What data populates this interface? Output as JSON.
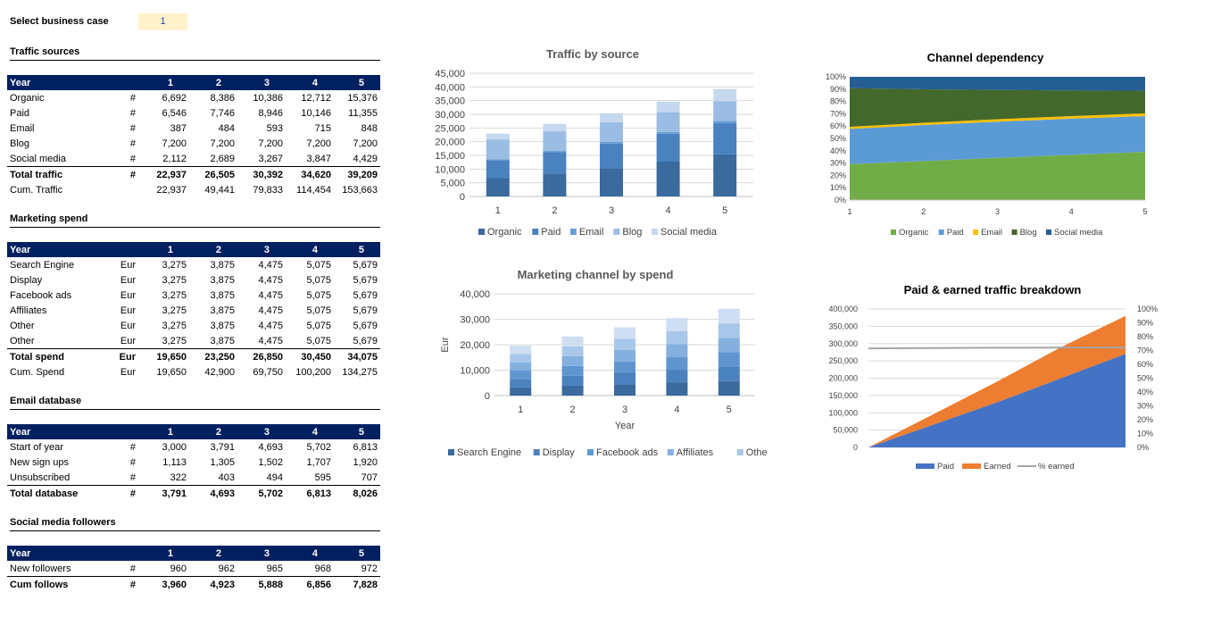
{
  "business_case": {
    "label": "Select business case",
    "value": "1"
  },
  "tables": [
    {
      "title": "Traffic sources",
      "header": [
        "Year",
        "",
        "1",
        "2",
        "3",
        "4",
        "5"
      ],
      "rows": [
        {
          "label": "Organic",
          "unit": "#",
          "values": [
            "6,692",
            "8,386",
            "10,386",
            "12,712",
            "15,376"
          ]
        },
        {
          "label": "Paid",
          "unit": "#",
          "values": [
            "6,546",
            "7,746",
            "8,946",
            "10,146",
            "11,355"
          ]
        },
        {
          "label": "Email",
          "unit": "#",
          "values": [
            "387",
            "484",
            "593",
            "715",
            "848"
          ]
        },
        {
          "label": "Blog",
          "unit": "#",
          "values": [
            "7,200",
            "7,200",
            "7,200",
            "7,200",
            "7,200"
          ]
        },
        {
          "label": "Social media",
          "unit": "#",
          "values": [
            "2,112",
            "2,689",
            "3,267",
            "3,847",
            "4,429"
          ]
        },
        {
          "label": "Total traffic",
          "unit": "#",
          "values": [
            "22,937",
            "26,505",
            "30,392",
            "34,620",
            "39,209"
          ],
          "total": true
        },
        {
          "label": "Cum. Traffic",
          "unit": "",
          "values": [
            "22,937",
            "49,441",
            "79,833",
            "114,454",
            "153,663"
          ]
        }
      ]
    },
    {
      "title": "Marketing spend",
      "header": [
        "Year",
        "",
        "1",
        "2",
        "3",
        "4",
        "5"
      ],
      "rows": [
        {
          "label": "Search Engine",
          "unit": "Eur",
          "values": [
            "3,275",
            "3,875",
            "4,475",
            "5,075",
            "5,679"
          ]
        },
        {
          "label": "Display",
          "unit": "Eur",
          "values": [
            "3,275",
            "3,875",
            "4,475",
            "5,075",
            "5,679"
          ]
        },
        {
          "label": "Facebook ads",
          "unit": "Eur",
          "values": [
            "3,275",
            "3,875",
            "4,475",
            "5,075",
            "5,679"
          ]
        },
        {
          "label": "Affiliates",
          "unit": "Eur",
          "values": [
            "3,275",
            "3,875",
            "4,475",
            "5,075",
            "5,679"
          ]
        },
        {
          "label": "Other",
          "unit": "Eur",
          "values": [
            "3,275",
            "3,875",
            "4,475",
            "5,075",
            "5,679"
          ]
        },
        {
          "label": "Other",
          "unit": "Eur",
          "values": [
            "3,275",
            "3,875",
            "4,475",
            "5,075",
            "5,679"
          ]
        },
        {
          "label": "Total spend",
          "unit": "Eur",
          "values": [
            "19,650",
            "23,250",
            "26,850",
            "30,450",
            "34,075"
          ],
          "total": true
        },
        {
          "label": "Cum. Spend",
          "unit": "Eur",
          "values": [
            "19,650",
            "42,900",
            "69,750",
            "100,200",
            "134,275"
          ]
        }
      ]
    },
    {
      "title": "Email database",
      "header": [
        "Year",
        "",
        "1",
        "2",
        "3",
        "4",
        "5"
      ],
      "rows": [
        {
          "label": "Start of year",
          "unit": "#",
          "values": [
            "3,000",
            "3,791",
            "4,693",
            "5,702",
            "6,813"
          ]
        },
        {
          "label": "New sign ups",
          "unit": "#",
          "values": [
            "1,113",
            "1,305",
            "1,502",
            "1,707",
            "1,920"
          ]
        },
        {
          "label": "Unsubscribed",
          "unit": "#",
          "values": [
            "322",
            "403",
            "494",
            "595",
            "707"
          ]
        },
        {
          "label": "Total database",
          "unit": "#",
          "values": [
            "3,791",
            "4,693",
            "5,702",
            "6,813",
            "8,026"
          ],
          "total": true,
          "bold_only": true
        }
      ]
    },
    {
      "title": "Social media followers",
      "header": [
        "Year",
        "",
        "1",
        "2",
        "3",
        "4",
        "5"
      ],
      "rows": [
        {
          "label": "New followers",
          "unit": "#",
          "values": [
            "960",
            "962",
            "965",
            "968",
            "972"
          ]
        },
        {
          "label": "Cum follows",
          "unit": "#",
          "values": [
            "3,960",
            "4,923",
            "5,888",
            "6,856",
            "7,828"
          ],
          "total": true
        }
      ]
    }
  ],
  "chart_data": [
    {
      "type": "bar",
      "stacked": true,
      "title": "Traffic by source",
      "categories": [
        "1",
        "2",
        "3",
        "4",
        "5"
      ],
      "ylim": [
        0,
        45000
      ],
      "yticks": [
        "0",
        "5,000",
        "10,000",
        "15,000",
        "20,000",
        "25,000",
        "30,000",
        "35,000",
        "40,000",
        "45,000"
      ],
      "series": [
        {
          "name": "Organic",
          "color": "#3a6a9e",
          "values": [
            6692,
            8386,
            10386,
            12712,
            15376
          ]
        },
        {
          "name": "Paid",
          "color": "#4a82bf",
          "values": [
            6546,
            7746,
            8946,
            10146,
            11355
          ]
        },
        {
          "name": "Email",
          "color": "#6b9fd6",
          "values": [
            387,
            484,
            593,
            715,
            848
          ]
        },
        {
          "name": "Blog",
          "color": "#9bbde4",
          "values": [
            7200,
            7200,
            7200,
            7200,
            7200
          ]
        },
        {
          "name": "Social media",
          "color": "#c5d8ef",
          "values": [
            2112,
            2689,
            3267,
            3847,
            4429
          ]
        }
      ],
      "grid": true,
      "legend": "bottom"
    },
    {
      "type": "area",
      "stacked_percent": true,
      "title": "Channel dependency",
      "categories": [
        "1",
        "2",
        "3",
        "4",
        "5"
      ],
      "ylim": [
        0,
        100
      ],
      "yticks": [
        "0%",
        "10%",
        "20%",
        "30%",
        "40%",
        "50%",
        "60%",
        "70%",
        "80%",
        "90%",
        "100%"
      ],
      "series": [
        {
          "name": "Organic",
          "color": "#70ad47",
          "values": [
            29.2,
            31.6,
            34.2,
            36.7,
            39.2
          ]
        },
        {
          "name": "Paid",
          "color": "#5b9bd5",
          "values": [
            28.5,
            29.2,
            29.4,
            29.3,
            29.0
          ]
        },
        {
          "name": "Email",
          "color": "#ffc000",
          "values": [
            1.7,
            1.8,
            2.0,
            2.1,
            2.2
          ]
        },
        {
          "name": "Blog",
          "color": "#43682b",
          "values": [
            31.4,
            27.2,
            23.7,
            20.8,
            18.4
          ]
        },
        {
          "name": "Social media",
          "color": "#255e91",
          "values": [
            9.2,
            10.1,
            10.7,
            11.1,
            11.3
          ]
        }
      ],
      "legend": "bottom"
    },
    {
      "type": "bar",
      "stacked": true,
      "title": "Marketing channel by spend",
      "categories": [
        "1",
        "2",
        "3",
        "4",
        "5"
      ],
      "xlabel": "Year",
      "ylabel": "Eur",
      "ylim": [
        0,
        40000
      ],
      "yticks": [
        "0",
        "10,000",
        "20,000",
        "30,000",
        "40,000"
      ],
      "series": [
        {
          "name": "Search Engine",
          "color": "#3a6a9e",
          "values": [
            3275,
            3875,
            4475,
            5075,
            5679
          ]
        },
        {
          "name": "Display",
          "color": "#4a82bf",
          "values": [
            3275,
            3875,
            4475,
            5075,
            5679
          ]
        },
        {
          "name": "Facebook ads",
          "color": "#6096d0",
          "values": [
            3275,
            3875,
            4475,
            5075,
            5679
          ]
        },
        {
          "name": "Affiliates",
          "color": "#84b0e0",
          "values": [
            3275,
            3875,
            4475,
            5075,
            5679
          ]
        },
        {
          "name": "Other",
          "color": "#a9c7ea",
          "values": [
            3275,
            3875,
            4475,
            5075,
            5679
          ]
        },
        {
          "name": "Other",
          "color": "#cfdff3",
          "values": [
            3275,
            3875,
            4475,
            5075,
            5679
          ]
        }
      ],
      "grid": true,
      "legend": "bottom"
    },
    {
      "type": "area",
      "stacked": true,
      "title": "Paid & earned traffic breakdown",
      "ylim": [
        0,
        400000
      ],
      "yticks": [
        "0",
        "50,000",
        "100,000",
        "150,000",
        "200,000",
        "250,000",
        "300,000",
        "350,000",
        "400,000"
      ],
      "y2lim": [
        0,
        100
      ],
      "y2ticks": [
        "0%",
        "10%",
        "20%",
        "30%",
        "40%",
        "50%",
        "60%",
        "70%",
        "80%",
        "90%",
        "100%"
      ],
      "series": [
        {
          "name": "Paid",
          "color": "#4472c4",
          "values": [
            0,
            65000,
            130000,
            200000,
            270000
          ]
        },
        {
          "name": "Earned",
          "color": "#ed7d31",
          "values": [
            0,
            30000,
            60000,
            90000,
            110000
          ]
        },
        {
          "name": "% earned",
          "color": "#a5a5a5",
          "axis": "secondary",
          "values": [
            71.5,
            71.8,
            72.0,
            72.1,
            72.2
          ]
        }
      ],
      "legend": "bottom"
    }
  ]
}
